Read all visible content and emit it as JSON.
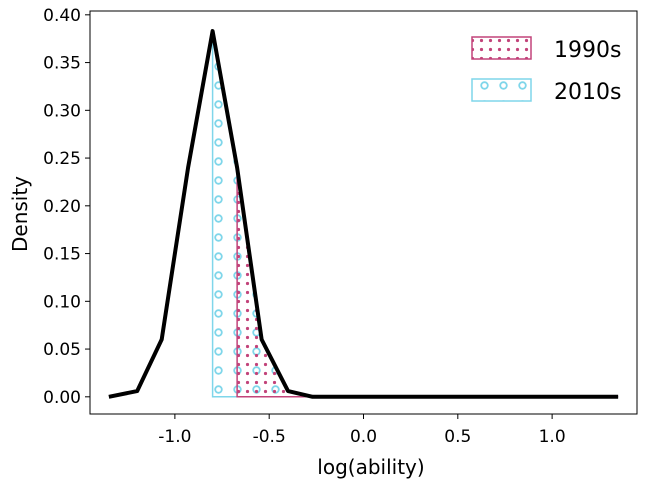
{
  "chart_data": {
    "type": "area",
    "title": "",
    "xlabel": "log(ability)",
    "ylabel": "Density",
    "xlim": [
      -1.45,
      1.45
    ],
    "ylim": [
      -0.018,
      0.404
    ],
    "xticks": [
      -1.0,
      -0.5,
      0.0,
      0.5,
      1.0
    ],
    "xtick_labels": [
      "-1.0",
      "-0.5",
      "0.0",
      "0.5",
      "1.0"
    ],
    "yticks": [
      0.0,
      0.05,
      0.1,
      0.15,
      0.2,
      0.25,
      0.3,
      0.35,
      0.4
    ],
    "ytick_labels": [
      "0.00",
      "0.05",
      "0.10",
      "0.15",
      "0.20",
      "0.25",
      "0.30",
      "0.35",
      "0.40"
    ],
    "legend_position": "top-right",
    "grid": false,
    "curve": {
      "color": "#000000",
      "x": [
        -1.35,
        -1.2,
        -1.07,
        -0.93,
        -0.8,
        -0.67,
        -0.54,
        -0.4,
        -0.27,
        -0.14,
        0.0,
        0.13,
        0.27,
        0.4,
        0.53,
        0.67,
        0.8,
        0.93,
        1.07,
        1.2,
        1.35
      ],
      "y": [
        0.0,
        0.006,
        0.06,
        0.24,
        0.383,
        0.24,
        0.06,
        0.006,
        0.0,
        0.0,
        0.0,
        0.0,
        0.0,
        0.0,
        0.0,
        0.0,
        0.0,
        0.0,
        0.0,
        0.0,
        0.0
      ]
    },
    "series": [
      {
        "name": "1990s",
        "color": "#c2437a",
        "pattern": "dots",
        "x_start": -0.67
      },
      {
        "name": "2010s",
        "color": "#7fd6ea",
        "pattern": "circles",
        "x_start": -0.8
      }
    ]
  }
}
